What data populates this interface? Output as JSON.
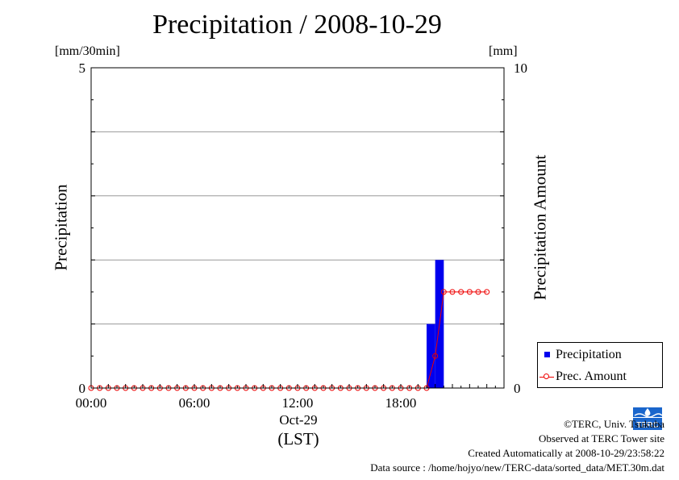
{
  "chart_data": {
    "type": "bar+line",
    "title": "Precipitation / 2008-10-29",
    "left_axis": {
      "label": "Precipitation",
      "unit": "[mm/30min]",
      "ylim": [
        0,
        5
      ],
      "tick_labels": [
        "0",
        "5"
      ],
      "gridlines": [
        1,
        2,
        3,
        4
      ]
    },
    "right_axis": {
      "label": "Precipitation Amount",
      "unit": "[mm]",
      "ylim": [
        0,
        10
      ],
      "tick_labels": [
        "0",
        "10"
      ]
    },
    "x_axis": {
      "tick_labels": [
        "00:00",
        "06:00",
        "12:00",
        "18:00"
      ],
      "date_label": "Oct-29",
      "zone_label": "(LST)",
      "range_hours": [
        0,
        24
      ]
    },
    "series": [
      {
        "name": "Precipitation",
        "kind": "bar",
        "color": "#0000ee",
        "x_hours": [
          19.5,
          20.0
        ],
        "values": [
          1.0,
          2.0
        ]
      },
      {
        "name": "Prec. Amount",
        "kind": "line-circle",
        "color": "#ee0000",
        "x_hours": [
          0.0,
          0.5,
          1.0,
          1.5,
          2.0,
          2.5,
          3.0,
          3.5,
          4.0,
          4.5,
          5.0,
          5.5,
          6.0,
          6.5,
          7.0,
          7.5,
          8.0,
          8.5,
          9.0,
          9.5,
          10.0,
          10.5,
          11.0,
          11.5,
          12.0,
          12.5,
          13.0,
          13.5,
          14.0,
          14.5,
          15.0,
          15.5,
          16.0,
          16.5,
          17.0,
          17.5,
          18.0,
          18.5,
          19.0,
          19.5,
          20.0,
          20.5,
          21.0,
          21.5,
          22.0,
          22.5,
          23.0
        ],
        "values": [
          0,
          0,
          0,
          0,
          0,
          0,
          0,
          0,
          0,
          0,
          0,
          0,
          0,
          0,
          0,
          0,
          0,
          0,
          0,
          0,
          0,
          0,
          0,
          0,
          0,
          0,
          0,
          0,
          0,
          0,
          0,
          0,
          0,
          0,
          0,
          0,
          0,
          0,
          0,
          0,
          1.0,
          3.0,
          3.0,
          3.0,
          3.0,
          3.0,
          3.0
        ]
      }
    ],
    "legend": [
      "Precipitation",
      "Prec. Amount"
    ],
    "legend_position": "bottom-right"
  },
  "credits": {
    "copyright": "©TERC, Univ. Tsukuba",
    "observed": "Observed at TERC Tower site",
    "created": "Created Automatically at 2008-10-29/23:58:22",
    "source": "Data source : /home/hojyo/new/TERC-data/sorted_data/MET.30m.dat"
  },
  "logo_text": "TERC"
}
